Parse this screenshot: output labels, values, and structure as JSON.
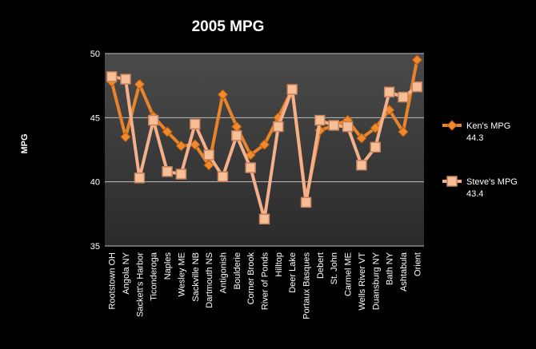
{
  "chart_data": {
    "type": "line",
    "title": "2005  MPG",
    "ylabel": "MPG",
    "xlabel": "",
    "ylim": [
      35,
      50
    ],
    "yticks": [
      35,
      40,
      45,
      50
    ],
    "grid": true,
    "legend_position": "right",
    "categories": [
      "Rootstown OH",
      "Angola NY",
      "Sackett's Harbor",
      "Ticonderoga",
      "Naples",
      "Wesley ME",
      "Sackville NB",
      "Dartmouth NS",
      "Antigonish",
      "Boulderie",
      "Corner Brook",
      "River of Ponds",
      "Hilltop",
      "Deer Lake",
      "Portaux Basques",
      "Debert",
      "St. John",
      "Carmel ME",
      "Wells River VT",
      "Duansburg NY",
      "Bath NY",
      "Ashtabula",
      "Orient"
    ],
    "series": [
      {
        "name": "Ken's MPG",
        "summary": "44.3",
        "color": "#e8842a",
        "marker": "diamond",
        "values": [
          47.8,
          43.5,
          47.6,
          45.1,
          43.9,
          42.8,
          42.9,
          41.3,
          46.8,
          44.3,
          42.1,
          42.9,
          45.0,
          47.2,
          38.6,
          44.0,
          44.4,
          44.8,
          43.4,
          44.2,
          45.6,
          43.9,
          49.5
        ]
      },
      {
        "name": "Steve's MPG",
        "summary": "43.4",
        "color": "#f4b08a",
        "marker": "square",
        "values": [
          48.2,
          48.0,
          40.3,
          44.8,
          40.8,
          40.6,
          44.5,
          42.1,
          40.4,
          43.6,
          41.1,
          37.1,
          44.3,
          47.2,
          38.4,
          44.8,
          44.4,
          44.3,
          41.3,
          42.7,
          47.0,
          46.6,
          47.4
        ]
      }
    ]
  }
}
